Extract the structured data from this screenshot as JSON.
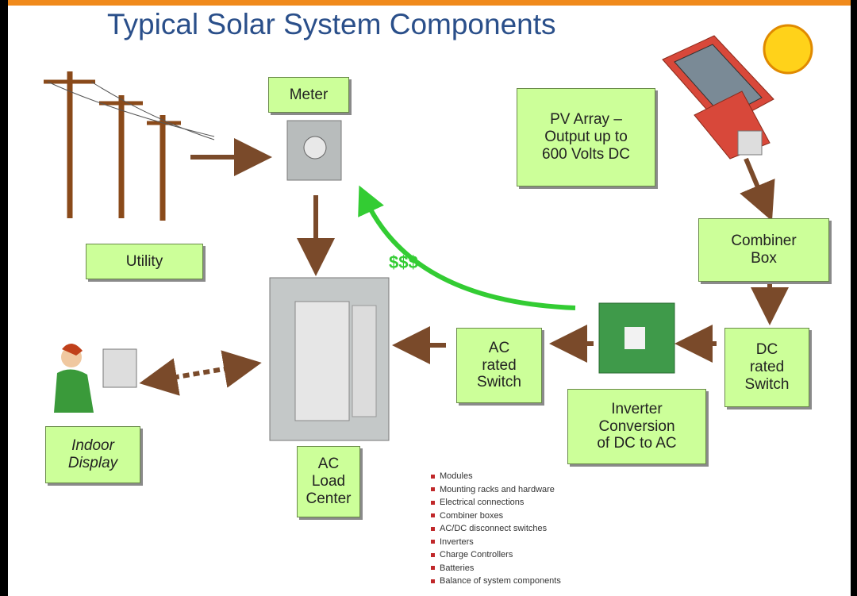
{
  "title": "Typical Solar System Components",
  "boxes": [
    {
      "name": "meter",
      "lines": [
        "Meter"
      ]
    },
    {
      "name": "utility",
      "lines": [
        "Utility"
      ]
    },
    {
      "name": "pv-array",
      "lines": [
        "PV Array –",
        "Output up to",
        "600 Volts DC"
      ]
    },
    {
      "name": "combiner-box",
      "lines": [
        "Combiner",
        "Box"
      ]
    },
    {
      "name": "dc-switch",
      "lines": [
        "DC",
        "rated",
        "Switch"
      ]
    },
    {
      "name": "ac-switch",
      "lines": [
        "AC",
        "rated",
        "Switch"
      ]
    },
    {
      "name": "inverter",
      "lines": [
        "Inverter",
        "Conversion",
        "of DC to AC"
      ]
    },
    {
      "name": "ac-load-center",
      "lines": [
        "AC",
        "Load",
        "Center"
      ]
    },
    {
      "name": "indoor-display",
      "lines": [
        "Indoor",
        "Display"
      ]
    }
  ],
  "money": "$$$",
  "list": [
    "Modules",
    "Mounting racks and hardware",
    "Electrical connections",
    "Combiner boxes",
    "AC/DC disconnect switches",
    "Inverters",
    "Charge Controllers",
    "Batteries",
    "Balance of system components"
  ]
}
